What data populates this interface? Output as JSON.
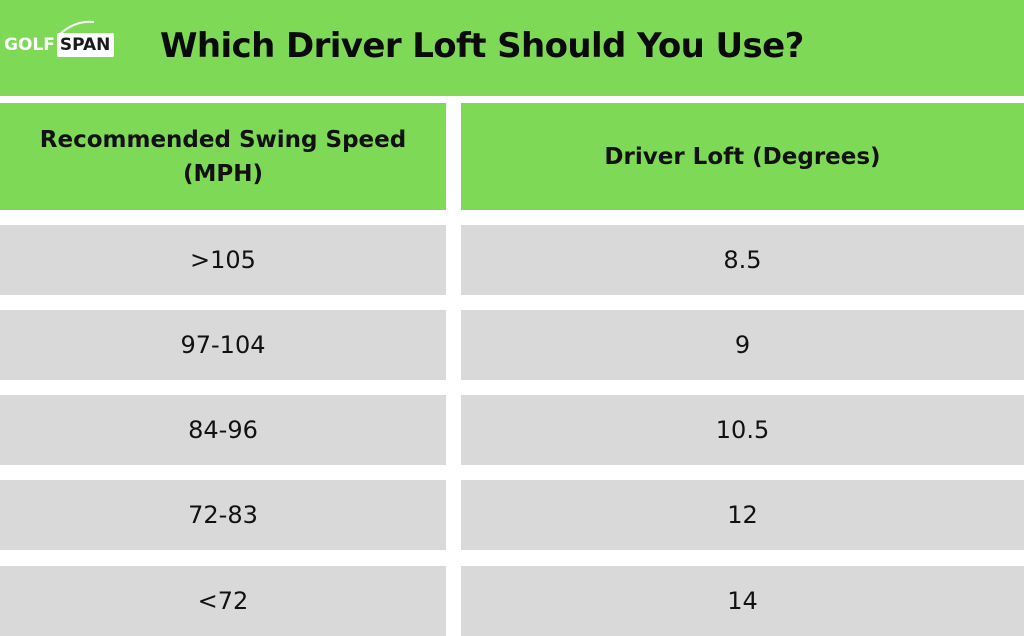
{
  "logo": {
    "golf": "GOLF",
    "span": "SPAN"
  },
  "title": "Which Driver Loft Should You Use?",
  "table": {
    "headers": [
      "Recommended Swing Speed (MPH)",
      "Driver Loft (Degrees)"
    ],
    "rows": [
      [
        ">105",
        "8.5"
      ],
      [
        "97-104",
        "9"
      ],
      [
        "84-96",
        "10.5"
      ],
      [
        "72-83",
        "12"
      ],
      [
        "<72",
        "14"
      ]
    ]
  },
  "colors": {
    "green": "#7ed957",
    "row_gray": "#d9d9d9",
    "text": "#111111"
  }
}
